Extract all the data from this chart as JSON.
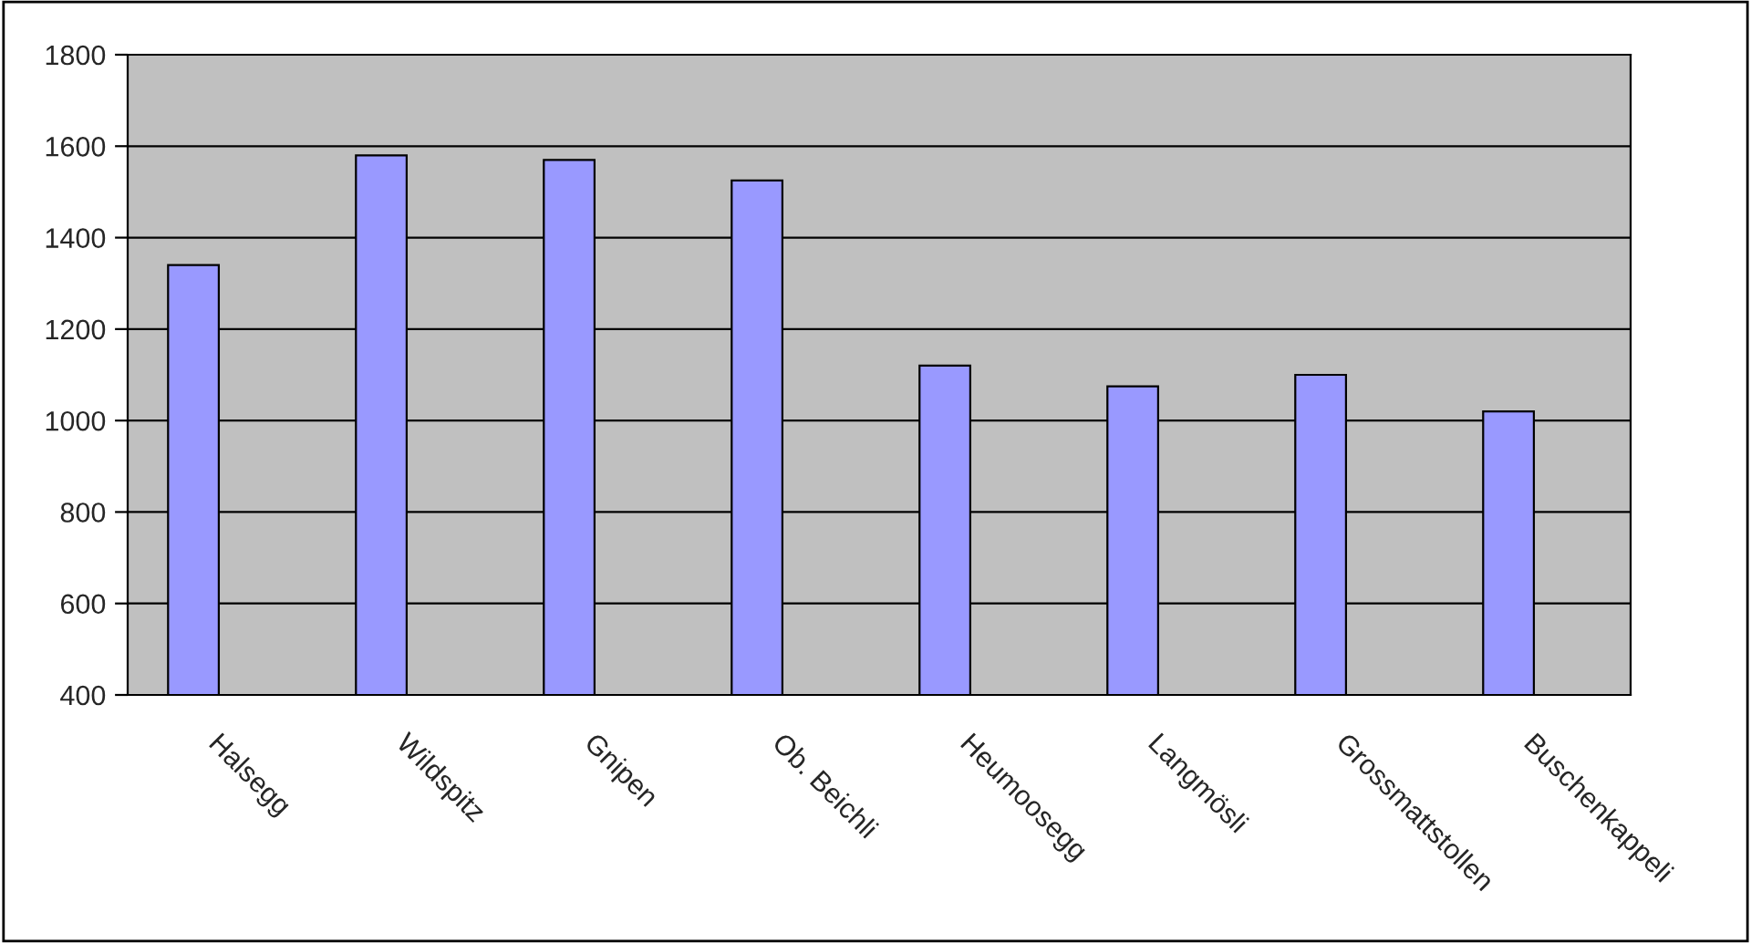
{
  "chart_data": {
    "type": "bar",
    "categories": [
      "Halsegg",
      "Wildspitz",
      "Gnipen",
      "Ob. Beichli",
      "Heumoosegg",
      "Langmösli",
      "Grossmattstollen",
      "Buschenkappeli"
    ],
    "values": [
      1340,
      1580,
      1570,
      1525,
      1120,
      1075,
      1100,
      1020
    ],
    "color": "#9999ff",
    "ylim": [
      400,
      1800
    ],
    "yticks": [
      400,
      600,
      800,
      1000,
      1200,
      1400,
      1600,
      1800
    ],
    "grid": "y",
    "legend": false
  }
}
